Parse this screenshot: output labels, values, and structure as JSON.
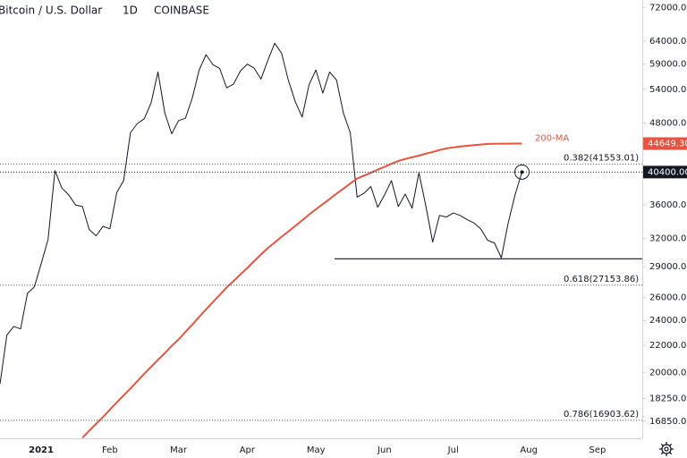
{
  "chart_data": {
    "type": "line",
    "title": "Bitcoin / U.S. Dollar",
    "interval": "1D",
    "exchange": "COINBASE",
    "log_scale": true,
    "grid": false,
    "categories": [
      null,
      null,
      null,
      null,
      null,
      null,
      "2021",
      null,
      null,
      null,
      null,
      null,
      null,
      null,
      null,
      null,
      "Feb",
      null,
      null,
      null,
      null,
      null,
      null,
      null,
      null,
      null,
      "Mar",
      null,
      null,
      null,
      null,
      null,
      null,
      null,
      null,
      null,
      "Apr",
      null,
      null,
      null,
      null,
      null,
      null,
      null,
      null,
      null,
      "May",
      null,
      null,
      null,
      null,
      null,
      null,
      null,
      null,
      null,
      "Jun",
      null,
      null,
      null,
      null,
      null,
      null,
      null,
      null,
      null,
      "Jul",
      null,
      null,
      null,
      null,
      null,
      null,
      null,
      null,
      null,
      null,
      "Aug",
      null,
      null,
      null,
      null,
      null,
      null,
      null,
      null,
      null,
      "Sep",
      null,
      null,
      null,
      null,
      null,
      null
    ],
    "series": [
      {
        "color": "#131722",
        "values": [
          19200,
          22800,
          23500,
          23300,
          26400,
          27000,
          29300,
          31900,
          40600,
          38200,
          37300,
          36000,
          35800,
          33000,
          32300,
          33400,
          33100,
          37600,
          39200,
          46400,
          47900,
          48700,
          51500,
          57400,
          49700,
          46200,
          48400,
          48800,
          52400,
          57800,
          61000,
          58900,
          58100,
          54300,
          55000,
          57600,
          59000,
          58200,
          56000,
          59800,
          63500,
          61300,
          55700,
          51700,
          49000,
          54900,
          57800,
          53300,
          57400,
          55800,
          49700,
          46400,
          37000,
          37500,
          38400,
          35700,
          37300,
          39200,
          35800,
          37400,
          35600,
          40300,
          35900,
          31600,
          34700,
          34500,
          35000,
          34700,
          34200,
          33800,
          33100,
          31800,
          31500,
          29900,
          33800,
          37300,
          40400,
          null,
          null,
          null,
          null,
          null,
          null,
          null,
          null,
          null,
          null,
          null,
          null,
          null,
          null,
          null,
          null,
          null
        ],
        "value_labels": [
          null,
          null,
          null,
          null,
          null,
          null,
          null,
          null,
          null,
          null,
          null,
          null,
          null,
          null,
          null,
          null,
          null,
          null,
          null,
          null,
          null,
          null,
          null,
          null,
          null,
          null,
          null,
          null,
          null,
          null,
          null,
          null,
          null,
          null,
          null,
          null,
          null,
          null,
          null,
          null,
          null,
          null,
          null,
          null,
          null,
          null,
          null,
          null,
          null,
          null,
          null,
          null,
          null,
          null,
          null,
          null,
          null,
          null,
          null,
          null,
          null,
          null,
          null,
          null,
          null,
          null,
          null,
          null,
          null,
          null,
          null,
          null,
          null,
          null,
          null,
          null,
          "40400.00",
          null,
          null,
          null,
          null,
          null,
          null,
          null,
          null,
          null,
          null,
          null,
          null,
          null,
          null,
          null,
          null,
          null
        ]
      },
      {
        "name": "200-MA",
        "color": "#e8533f",
        "values": [
          null,
          null,
          null,
          null,
          null,
          null,
          null,
          null,
          null,
          null,
          null,
          null,
          15900,
          16300,
          16700,
          17100,
          17550,
          18000,
          18450,
          18900,
          19400,
          19900,
          20400,
          20900,
          21400,
          21950,
          22450,
          23050,
          23650,
          24300,
          24950,
          25600,
          26250,
          26950,
          27550,
          28200,
          28850,
          29550,
          30250,
          30950,
          31550,
          32200,
          32800,
          33450,
          34100,
          34800,
          35450,
          36100,
          36750,
          37450,
          38100,
          38800,
          39500,
          39900,
          40300,
          40750,
          41150,
          41600,
          42000,
          42300,
          42550,
          42800,
          43100,
          43350,
          43650,
          43900,
          44050,
          44200,
          44300,
          44400,
          44500,
          44600,
          44620,
          44630,
          44640,
          44645,
          44649.3,
          null,
          null,
          null,
          null,
          null,
          null,
          null,
          null,
          null,
          null,
          null,
          null,
          null,
          null,
          null,
          null,
          null
        ],
        "value_labels": [
          null,
          null,
          null,
          null,
          null,
          null,
          null,
          null,
          null,
          null,
          null,
          null,
          null,
          null,
          null,
          null,
          null,
          null,
          null,
          null,
          null,
          null,
          null,
          null,
          null,
          null,
          null,
          null,
          null,
          null,
          null,
          null,
          null,
          null,
          null,
          null,
          null,
          null,
          null,
          null,
          null,
          null,
          null,
          null,
          null,
          null,
          null,
          null,
          null,
          null,
          null,
          null,
          null,
          null,
          null,
          null,
          null,
          null,
          null,
          null,
          null,
          null,
          null,
          null,
          null,
          null,
          null,
          null,
          null,
          null,
          null,
          null,
          null,
          null,
          null,
          null,
          "44649.30",
          null,
          null,
          null,
          null,
          null,
          null,
          null,
          null,
          null,
          null,
          null,
          null,
          null,
          null,
          null,
          null,
          null
        ]
      }
    ],
    "fib_levels": [
      {
        "value": 41553.01,
        "label": "0.382(41553.01)"
      },
      {
        "value": 27153.86,
        "label": "0.618(27153.86)"
      },
      {
        "value": 16903.62,
        "label": "0.786(16903.62)"
      }
    ],
    "support_level": 29800,
    "ylim": [
      15870,
      73900
    ],
    "yticks": [
      {
        "value": 72000,
        "label": "72000.00"
      },
      {
        "value": 64000,
        "label": "64000.00"
      },
      {
        "value": 59000,
        "label": "59000.00"
      },
      {
        "value": 54000,
        "label": "54000.00"
      },
      {
        "value": 48000,
        "label": "48000.00"
      },
      {
        "value": 36000,
        "label": "36000.00"
      },
      {
        "value": 32000,
        "label": "32000.00"
      },
      {
        "value": 29000,
        "label": "29000.00"
      },
      {
        "value": 26000,
        "label": "26000.00"
      },
      {
        "value": 24000,
        "label": "24000.00"
      },
      {
        "value": 22000,
        "label": "22000.00"
      },
      {
        "value": 20000,
        "label": "20000.00"
      },
      {
        "value": 18250,
        "label": "18250.00"
      },
      {
        "value": 16850,
        "label": "16850.00"
      }
    ]
  }
}
